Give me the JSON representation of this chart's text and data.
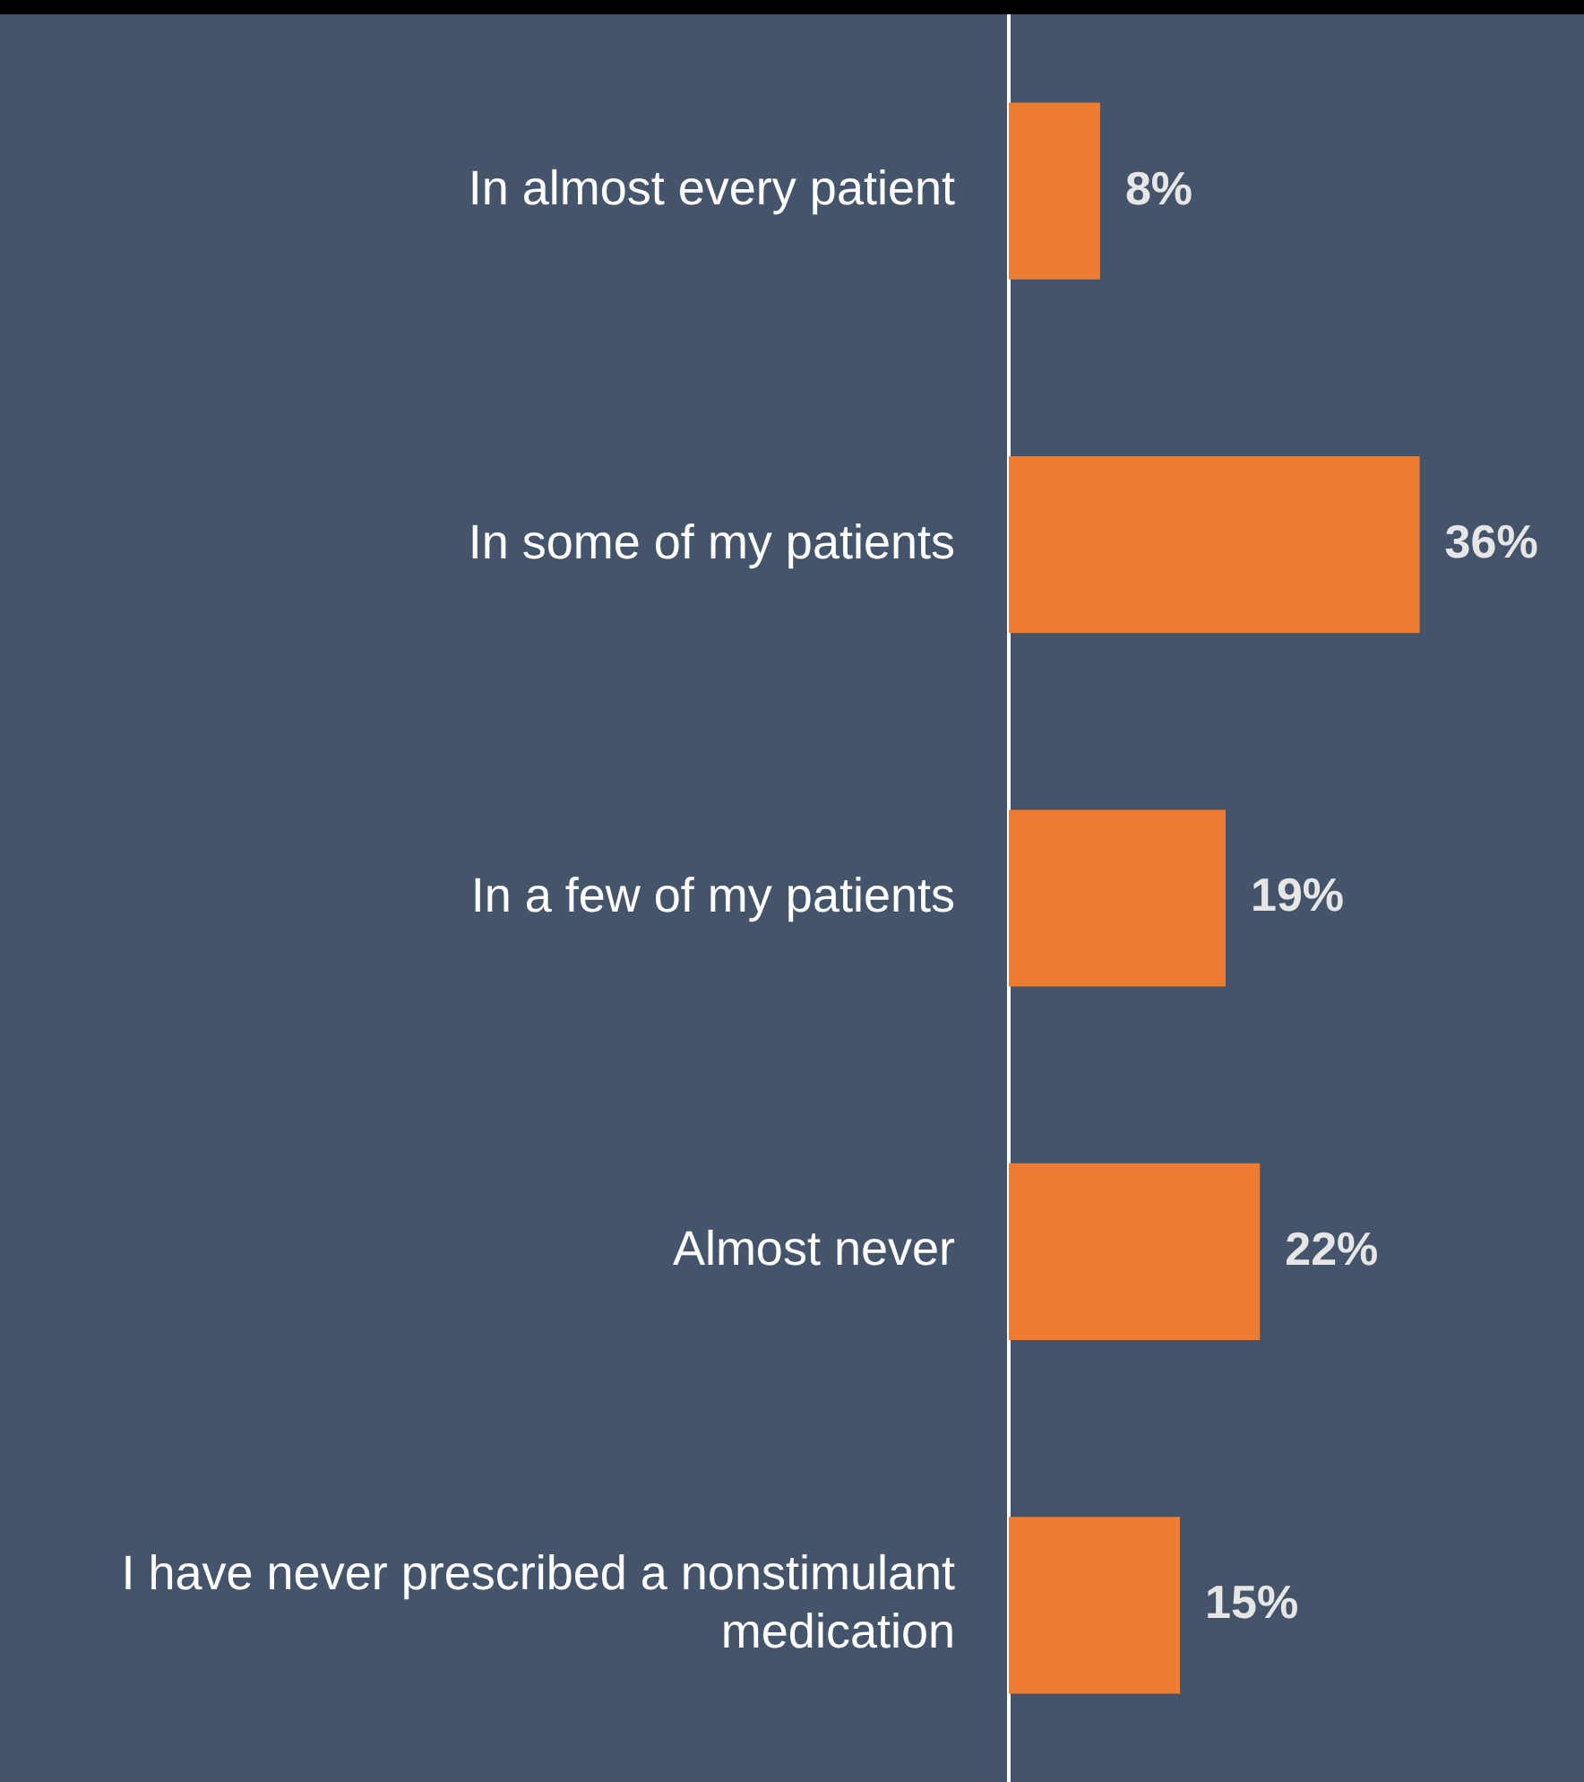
{
  "chart_data": {
    "type": "bar",
    "orientation": "horizontal",
    "categories": [
      "In almost every patient",
      "In some of my patients",
      "In a few of my patients",
      "Almost never",
      "I have never prescribed a nonstimulant medication"
    ],
    "values": [
      8,
      36,
      19,
      22,
      15
    ],
    "color": "#ed7d31",
    "value_labels": [
      "8%",
      "36%",
      "19%",
      "22%",
      "15%"
    ],
    "grid": false,
    "legend": false,
    "tick_labels": "y"
  }
}
